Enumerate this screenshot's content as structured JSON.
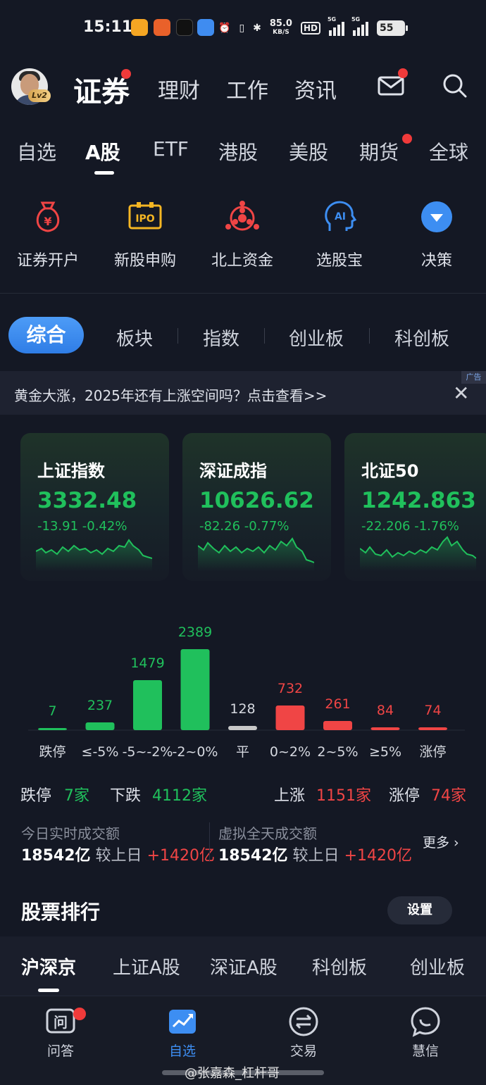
{
  "status_bar": {
    "time": "15:11",
    "net_speed": "85.0",
    "net_unit": "KB/S",
    "hd": "HD",
    "signal1": "5G",
    "signal2": "5G",
    "battery": "55"
  },
  "header": {
    "level_badge": "Lv2",
    "tabs": [
      "证券",
      "理财",
      "工作",
      "资讯"
    ]
  },
  "market_tabs": [
    "自选",
    "A股",
    "ETF",
    "港股",
    "美股",
    "期货",
    "全球"
  ],
  "features": [
    {
      "label": "证券开户",
      "icon": "money-bag-icon"
    },
    {
      "label": "新股申购",
      "icon": "ipo-icon"
    },
    {
      "label": "北上资金",
      "icon": "hk-flower-icon"
    },
    {
      "label": "选股宝",
      "icon": "ai-head-icon"
    },
    {
      "label": "决策",
      "icon": "chevron-circle-icon"
    }
  ],
  "segment_tabs": [
    "综合",
    "板块",
    "指数",
    "创业板",
    "科创板"
  ],
  "ad": {
    "text": "黄金大涨，2025年还有上涨空间吗？点击查看>>",
    "tag": "广告",
    "close": "✕"
  },
  "indices": [
    {
      "name": "上证指数",
      "price": "3332.48",
      "change": "-13.91",
      "pct": "-0.42%"
    },
    {
      "name": "深证成指",
      "price": "10626.62",
      "change": "-82.26",
      "pct": "-0.77%"
    },
    {
      "name": "北证50",
      "price": "1242.863",
      "change": "-22.206",
      "pct": "-1.76%"
    }
  ],
  "chart_data": {
    "type": "bar",
    "categories": [
      "跌停",
      "≤-5%",
      "-5~-2%",
      "-2~0%",
      "平",
      "0~2%",
      "2~5%",
      "≥5%",
      "涨停"
    ],
    "values": [
      7,
      237,
      1479,
      2389,
      128,
      732,
      261,
      84,
      74
    ],
    "colors": [
      "#20c05c",
      "#20c05c",
      "#20c05c",
      "#20c05c",
      "#c8c8c8",
      "#f04545",
      "#f04545",
      "#f04545",
      "#f04545"
    ]
  },
  "counts": {
    "limit_down_label": "跌停",
    "limit_down": "7家",
    "down_label": "下跌",
    "down": "4112家",
    "up_label": "上涨",
    "up": "1151家",
    "limit_up_label": "涨停",
    "limit_up": "74家"
  },
  "turnover": {
    "today_title": "今日实时成交额",
    "today_value": "18542亿",
    "compare_label": "较上日",
    "today_diff": "+1420亿",
    "virtual_title": "虚拟全天成交额",
    "virtual_value": "18542亿",
    "virtual_diff": "+1420亿",
    "more": "更多 ›"
  },
  "ranking": {
    "title": "股票排行",
    "settings": "设置",
    "tabs": [
      "沪深京",
      "上证A股",
      "深证A股",
      "科创板",
      "创业板"
    ]
  },
  "bottom_nav": [
    "问答",
    "自选",
    "交易",
    "慧信"
  ],
  "watermark": "@张嘉森_杠杆哥",
  "colors": {
    "up": "#f04545",
    "down": "#20c05c",
    "accent": "#3d8ef2",
    "background": "#141824"
  }
}
